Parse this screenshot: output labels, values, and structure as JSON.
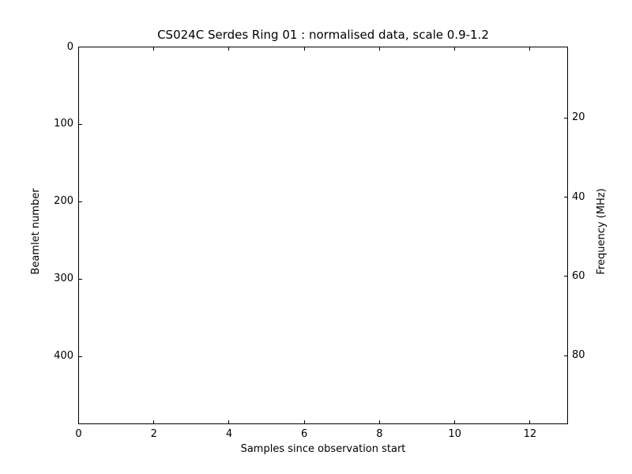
{
  "figure": {
    "background": "#ffffff",
    "plot_background": "#ffffff",
    "frame_color": "#000000",
    "text_color": "#000000"
  },
  "chart_data": {
    "type": "heatmap",
    "title": "CS024C Serdes Ring 01 : normalised data, scale 0.9-1.2",
    "xlabel": "Samples since observation start",
    "ylabel_left": "Beamlet number",
    "ylabel_right": "Frequency (MHz)",
    "x_range": [
      0,
      13
    ],
    "x_ticks": [
      0,
      2,
      4,
      6,
      8,
      10,
      12
    ],
    "y_left_range": [
      0,
      487
    ],
    "y_left_inverted": true,
    "y_left_ticks": [
      0,
      100,
      200,
      300,
      400
    ],
    "y_right_range": [
      2.1,
      97.2
    ],
    "y_right_ticks": [
      20,
      40,
      60,
      80
    ],
    "grid": false,
    "legend": "none",
    "values": []
  }
}
